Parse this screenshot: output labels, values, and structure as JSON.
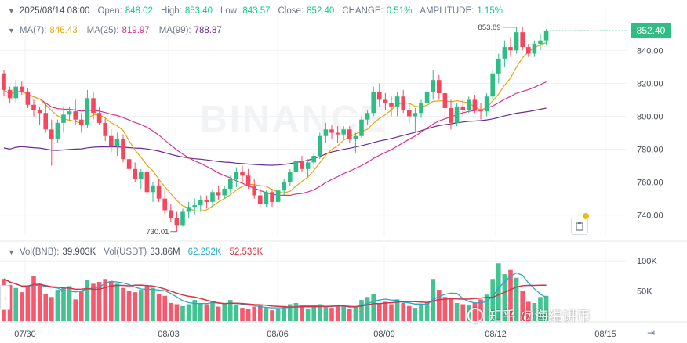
{
  "header": {
    "datetime": "2025/08/14 08:00",
    "open_label": "Open:",
    "open": "848.02",
    "high_label": "High:",
    "high": "853.40",
    "low_label": "Low:",
    "low": "843.57",
    "close_label": "Close:",
    "close": "852.40",
    "change_label": "CHANGE:",
    "change": "0.51%",
    "amplitude_label": "AMPLITUDE:",
    "amplitude": "1.15%"
  },
  "ma_row": {
    "ma7_label": "MA(7):",
    "ma7": "846.43",
    "ma25_label": "MA(25):",
    "ma25": "819.97",
    "ma99_label": "MA(99):",
    "ma99": "788.87"
  },
  "vol_row": {
    "vol_bnb_label": "Vol(BNB):",
    "vol_bnb": "39.903K",
    "vol_usdt_label": "Vol(USDT)",
    "vol_usdt": "33.86M",
    "vol_ma1": "62.252K",
    "vol_ma2": "52.536K"
  },
  "price_badge": "852.40",
  "background_brand": "BINANCE",
  "watermark": "知乎 @海绵讲币",
  "colors": {
    "up": "#2ebd85",
    "down": "#f6465d",
    "ma7": "#e5a512",
    "ma25": "#d6338f",
    "ma99": "#6a2c91",
    "vol_ma1": "#2aa5c9",
    "vol_ma2": "#d6334a"
  },
  "chart_data": {
    "type": "candlestick",
    "price_axis": {
      "ticks": [
        "840.00",
        "820.00",
        "800.00",
        "780.00",
        "760.00",
        "740.00"
      ],
      "range": [
        728,
        862
      ]
    },
    "volume_axis": {
      "ticks": [
        "100K",
        "50K"
      ],
      "range": [
        0,
        125
      ]
    },
    "x_tick_labels": [
      "07/30",
      "08/03",
      "08/06",
      "08/09",
      "08/12",
      "08/15"
    ],
    "annotations": {
      "high_label": "853.89",
      "low_label": "730.01"
    },
    "candles": [
      [
        826,
        828,
        812,
        816
      ],
      [
        816,
        818,
        808,
        811
      ],
      [
        811,
        822,
        808,
        818
      ],
      [
        818,
        821,
        813,
        815
      ],
      [
        815,
        817,
        805,
        807
      ],
      [
        807,
        810,
        800,
        804
      ],
      [
        804,
        806,
        795,
        802
      ],
      [
        802,
        808,
        790,
        792
      ],
      [
        792,
        798,
        770,
        786
      ],
      [
        786,
        798,
        784,
        796
      ],
      [
        796,
        806,
        790,
        801
      ],
      [
        801,
        806,
        797,
        803
      ],
      [
        803,
        810,
        795,
        798
      ],
      [
        798,
        802,
        790,
        795
      ],
      [
        795,
        816,
        793,
        811
      ],
      [
        811,
        815,
        798,
        802
      ],
      [
        802,
        806,
        795,
        796
      ],
      [
        796,
        799,
        785,
        788
      ],
      [
        788,
        792,
        778,
        782
      ],
      [
        782,
        790,
        776,
        786
      ],
      [
        786,
        789,
        772,
        774
      ],
      [
        774,
        777,
        764,
        768
      ],
      [
        768,
        772,
        760,
        762
      ],
      [
        762,
        768,
        756,
        766
      ],
      [
        766,
        770,
        752,
        754
      ],
      [
        754,
        760,
        748,
        758
      ],
      [
        758,
        762,
        748,
        750
      ],
      [
        750,
        756,
        740,
        743
      ],
      [
        743,
        747,
        736,
        738
      ],
      [
        738,
        742,
        730,
        734
      ],
      [
        734,
        744,
        733,
        742
      ],
      [
        742,
        748,
        738,
        745
      ],
      [
        745,
        750,
        740,
        746
      ],
      [
        746,
        752,
        742,
        749
      ],
      [
        749,
        752,
        744,
        748
      ],
      [
        748,
        756,
        745,
        754
      ],
      [
        754,
        758,
        749,
        752
      ],
      [
        752,
        758,
        750,
        756
      ],
      [
        756,
        764,
        753,
        762
      ],
      [
        762,
        769,
        757,
        766
      ],
      [
        766,
        770,
        760,
        764
      ],
      [
        764,
        768,
        756,
        758
      ],
      [
        758,
        762,
        750,
        752
      ],
      [
        752,
        756,
        745,
        747
      ],
      [
        747,
        755,
        745,
        754
      ],
      [
        754,
        756,
        745,
        748
      ],
      [
        748,
        757,
        746,
        755
      ],
      [
        755,
        762,
        752,
        760
      ],
      [
        760,
        768,
        758,
        766
      ],
      [
        766,
        775,
        763,
        773
      ],
      [
        773,
        776,
        766,
        768
      ],
      [
        768,
        774,
        763,
        772
      ],
      [
        772,
        778,
        768,
        776
      ],
      [
        776,
        790,
        774,
        788
      ],
      [
        788,
        796,
        784,
        792
      ],
      [
        792,
        795,
        786,
        790
      ],
      [
        790,
        794,
        784,
        789
      ],
      [
        789,
        794,
        786,
        792
      ],
      [
        792,
        794,
        784,
        786
      ],
      [
        786,
        790,
        778,
        788
      ],
      [
        788,
        800,
        787,
        798
      ],
      [
        798,
        804,
        795,
        802
      ],
      [
        802,
        818,
        800,
        815
      ],
      [
        815,
        820,
        806,
        810
      ],
      [
        810,
        814,
        804,
        808
      ],
      [
        808,
        812,
        800,
        806
      ],
      [
        806,
        815,
        800,
        812
      ],
      [
        812,
        816,
        802,
        804
      ],
      [
        804,
        808,
        796,
        800
      ],
      [
        800,
        805,
        790,
        802
      ],
      [
        802,
        810,
        799,
        808
      ],
      [
        808,
        818,
        806,
        815
      ],
      [
        815,
        828,
        810,
        822
      ],
      [
        822,
        825,
        810,
        814
      ],
      [
        814,
        818,
        800,
        805
      ],
      [
        805,
        810,
        792,
        796
      ],
      [
        796,
        808,
        794,
        806
      ],
      [
        806,
        810,
        800,
        804
      ],
      [
        804,
        812,
        802,
        810
      ],
      [
        810,
        813,
        802,
        804
      ],
      [
        804,
        808,
        798,
        803
      ],
      [
        803,
        814,
        800,
        812
      ],
      [
        812,
        828,
        810,
        826
      ],
      [
        826,
        838,
        820,
        835
      ],
      [
        835,
        846,
        830,
        842
      ],
      [
        842,
        848,
        836,
        840
      ],
      [
        840,
        854,
        838,
        851
      ],
      [
        851,
        854,
        840,
        842
      ],
      [
        842,
        844,
        836,
        838
      ],
      [
        838,
        846,
        836,
        844
      ],
      [
        844,
        850,
        840,
        846
      ],
      [
        846,
        853,
        843,
        852
      ]
    ],
    "volumes": [
      70,
      60,
      55,
      48,
      58,
      75,
      62,
      45,
      40,
      52,
      55,
      58,
      36,
      50,
      68,
      62,
      65,
      70,
      66,
      62,
      55,
      50,
      48,
      52,
      58,
      55,
      45,
      42,
      30,
      28,
      25,
      28,
      35,
      30,
      28,
      32,
      24,
      30,
      35,
      28,
      22,
      20,
      24,
      26,
      22,
      18,
      20,
      25,
      28,
      30,
      24,
      20,
      26,
      28,
      24,
      22,
      26,
      24,
      20,
      25,
      35,
      40,
      45,
      30,
      32,
      28,
      36,
      30,
      25,
      22,
      28,
      32,
      70,
      52,
      40,
      38,
      30,
      28,
      26,
      30,
      36,
      44,
      70,
      96,
      78,
      85,
      72,
      50,
      32,
      30,
      40,
      42
    ],
    "ma_lines": {
      "ma7": "MA(7)",
      "ma25": "MA(25)",
      "ma99": "MA(99)"
    }
  }
}
